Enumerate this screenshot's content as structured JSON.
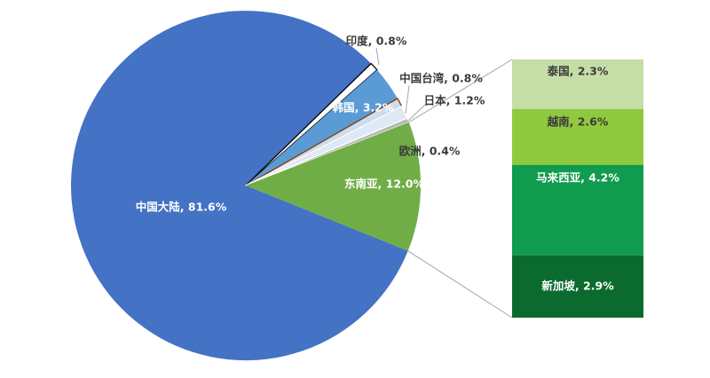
{
  "figure": {
    "background_color": "#FFFFFF",
    "title": "",
    "description_colors": {
      "connector_line": "#A6A6A6",
      "outside_label_text": "#3B3B3B",
      "inside_label_text": "#FFFFFF"
    }
  },
  "chart_data": {
    "type": "pie",
    "subtype": "bar-of-pie",
    "title": "",
    "legend_position": "none",
    "labels_format": "name, percent",
    "pie_slices": [
      {
        "id": "china-mainland",
        "name": "中国大陆",
        "value": 81.6,
        "label": "中国大陆, 81.6%",
        "color": "#4472C4",
        "label_color": "#FFFFFF",
        "label_inside": true
      },
      {
        "id": "india",
        "name": "印度",
        "value": 0.8,
        "label": "印度, 0.8%",
        "color": "#FFFFFF",
        "stroke": "#000000",
        "label_color": "#3B3B3B",
        "label_inside": false
      },
      {
        "id": "south-korea",
        "name": "韩国",
        "value": 3.2,
        "label": "韩国, 3.2%",
        "color": "#5B9BD5",
        "label_color": "#FFFFFF",
        "label_inside": true
      },
      {
        "id": "taiwan-china",
        "name": "中国台湾",
        "value": 0.8,
        "label": "中国台湾, 0.8%",
        "color": "#CBDDEF",
        "stroke": "#843C0C",
        "label_color": "#3B3B3B",
        "label_inside": false
      },
      {
        "id": "japan",
        "name": "日本",
        "value": 1.2,
        "label": "日本, 1.2%",
        "color": "#DDE9F5",
        "stroke": "#FFFFFF",
        "label_color": "#3B3B3B",
        "label_inside": false
      },
      {
        "id": "europe",
        "name": "欧洲",
        "value": 0.4,
        "label": "欧洲, 0.4%",
        "color": "#B7B7B7",
        "stroke": "#FFFFFF",
        "label_color": "#3B3B3B",
        "label_inside": false
      },
      {
        "id": "southeast-asia",
        "name": "东南亚",
        "value": 12.0,
        "label": "东南亚, 12.0%",
        "color": "#70AD47",
        "label_color": "#FFFFFF",
        "label_inside": true
      }
    ],
    "breakout_bar": {
      "parent_slice": "东南亚",
      "total_value": 12.0,
      "segments": [
        {
          "id": "thailand",
          "name": "泰国",
          "value": 2.3,
          "label": "泰国, 2.3%",
          "color": "#C5DEA6",
          "label_color": "#3B3B3B"
        },
        {
          "id": "vietnam",
          "name": "越南",
          "value": 2.6,
          "label": "越南, 2.6%",
          "color": "#90C83E",
          "label_color": "#3B3B3B"
        },
        {
          "id": "malaysia",
          "name": "马来西亚",
          "value": 4.2,
          "label": "马来西亚, 4.2%",
          "color": "#109C4E",
          "label_color": "#FFFFFF"
        },
        {
          "id": "singapore",
          "name": "新加坡",
          "value": 2.9,
          "label": "新加坡, 2.9%",
          "color": "#0B6B2E",
          "label_color": "#FFFFFF"
        }
      ]
    }
  }
}
